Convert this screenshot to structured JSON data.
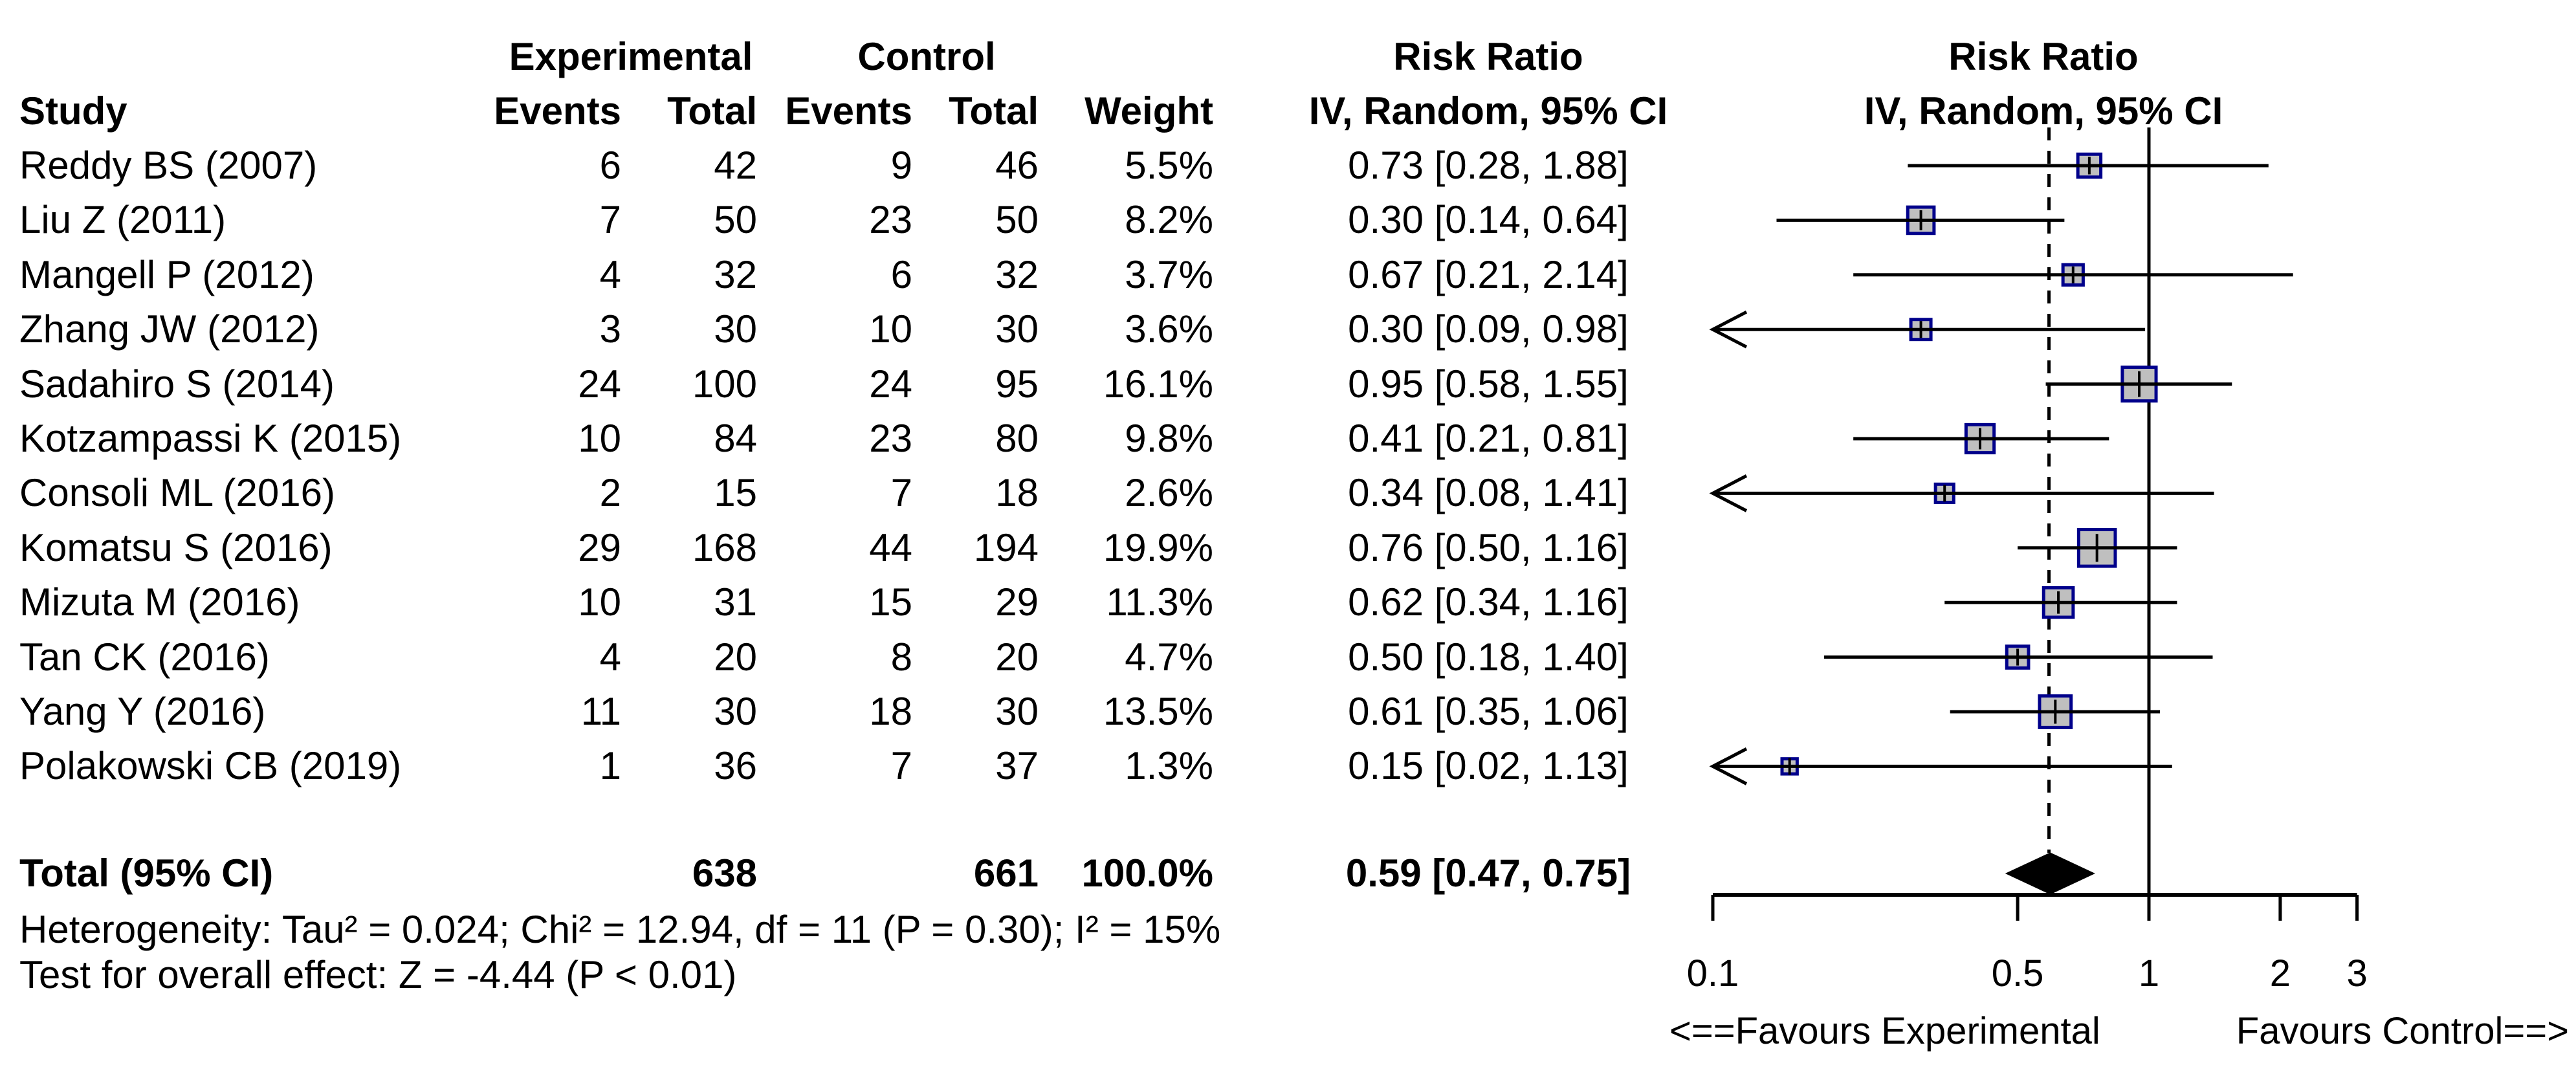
{
  "header": {
    "study": "Study",
    "experimental": "Experimental",
    "control": "Control",
    "events": "Events",
    "total": "Total",
    "weight": "Weight",
    "risk_ratio": "Risk Ratio",
    "method_ci": "IV, Random, 95% CI"
  },
  "chart_data": {
    "type": "scatter",
    "subtype": "forest-plot",
    "x_scale": "log",
    "xlim": [
      0.1,
      3
    ],
    "x_ticks": [
      "0.1",
      "0.5",
      "1",
      "2",
      "3"
    ],
    "null_line": 1,
    "pooled_line": 0.59,
    "studies": [
      {
        "name": "Reddy BS (2007)",
        "events_exp": "6",
        "total_exp": "42",
        "events_ctl": "9",
        "total_ctl": "46",
        "weight": "5.5%",
        "rr_text": "0.73 [0.28, 1.88]",
        "rr": 0.73,
        "ci_low": 0.28,
        "ci_high": 1.88,
        "weight_pct": 5.5
      },
      {
        "name": "Liu Z (2011)",
        "events_exp": "7",
        "total_exp": "50",
        "events_ctl": "23",
        "total_ctl": "50",
        "weight": "8.2%",
        "rr_text": "0.30 [0.14, 0.64]",
        "rr": 0.3,
        "ci_low": 0.14,
        "ci_high": 0.64,
        "weight_pct": 8.2
      },
      {
        "name": "Mangell P (2012)",
        "events_exp": "4",
        "total_exp": "32",
        "events_ctl": "6",
        "total_ctl": "32",
        "weight": "3.7%",
        "rr_text": "0.67 [0.21, 2.14]",
        "rr": 0.67,
        "ci_low": 0.21,
        "ci_high": 2.14,
        "weight_pct": 3.7
      },
      {
        "name": "Zhang JW (2012)",
        "events_exp": "3",
        "total_exp": "30",
        "events_ctl": "10",
        "total_ctl": "30",
        "weight": "3.6%",
        "rr_text": "0.30 [0.09, 0.98]",
        "rr": 0.3,
        "ci_low": 0.09,
        "ci_high": 0.98,
        "weight_pct": 3.6
      },
      {
        "name": "Sadahiro S (2014)",
        "events_exp": "24",
        "total_exp": "100",
        "events_ctl": "24",
        "total_ctl": "95",
        "weight": "16.1%",
        "rr_text": "0.95 [0.58, 1.55]",
        "rr": 0.95,
        "ci_low": 0.58,
        "ci_high": 1.55,
        "weight_pct": 16.1
      },
      {
        "name": "Kotzampassi K (2015)",
        "events_exp": "10",
        "total_exp": "84",
        "events_ctl": "23",
        "total_ctl": "80",
        "weight": "9.8%",
        "rr_text": "0.41 [0.21, 0.81]",
        "rr": 0.41,
        "ci_low": 0.21,
        "ci_high": 0.81,
        "weight_pct": 9.8
      },
      {
        "name": "Consoli ML (2016)",
        "events_exp": "2",
        "total_exp": "15",
        "events_ctl": "7",
        "total_ctl": "18",
        "weight": "2.6%",
        "rr_text": "0.34 [0.08, 1.41]",
        "rr": 0.34,
        "ci_low": 0.08,
        "ci_high": 1.41,
        "weight_pct": 2.6
      },
      {
        "name": "Komatsu S (2016)",
        "events_exp": "29",
        "total_exp": "168",
        "events_ctl": "44",
        "total_ctl": "194",
        "weight": "19.9%",
        "rr_text": "0.76 [0.50, 1.16]",
        "rr": 0.76,
        "ci_low": 0.5,
        "ci_high": 1.16,
        "weight_pct": 19.9
      },
      {
        "name": "Mizuta M (2016)",
        "events_exp": "10",
        "total_exp": "31",
        "events_ctl": "15",
        "total_ctl": "29",
        "weight": "11.3%",
        "rr_text": "0.62 [0.34, 1.16]",
        "rr": 0.62,
        "ci_low": 0.34,
        "ci_high": 1.16,
        "weight_pct": 11.3
      },
      {
        "name": "Tan CK (2016)",
        "events_exp": "4",
        "total_exp": "20",
        "events_ctl": "8",
        "total_ctl": "20",
        "weight": "4.7%",
        "rr_text": "0.50 [0.18, 1.40]",
        "rr": 0.5,
        "ci_low": 0.18,
        "ci_high": 1.4,
        "weight_pct": 4.7
      },
      {
        "name": "Yang Y (2016)",
        "events_exp": "11",
        "total_exp": "30",
        "events_ctl": "18",
        "total_ctl": "30",
        "weight": "13.5%",
        "rr_text": "0.61 [0.35, 1.06]",
        "rr": 0.61,
        "ci_low": 0.35,
        "ci_high": 1.06,
        "weight_pct": 13.5
      },
      {
        "name": "Polakowski CB (2019)",
        "events_exp": "1",
        "total_exp": "36",
        "events_ctl": "7",
        "total_ctl": "37",
        "weight": "1.3%",
        "rr_text": "0.15 [0.02, 1.13]",
        "rr": 0.15,
        "ci_low": 0.02,
        "ci_high": 1.13,
        "weight_pct": 1.3
      }
    ],
    "total": {
      "label": "Total (95% CI)",
      "total_exp": "638",
      "total_ctl": "661",
      "weight": "100.0%",
      "rr_text": "0.59 [0.47, 0.75]",
      "rr": 0.59,
      "ci_low": 0.47,
      "ci_high": 0.75
    }
  },
  "footer": {
    "heterogeneity": "Heterogeneity: Tau² = 0.024; Chi² = 12.94, df = 11 (P = 0.30); I² = 15%",
    "overall_effect": "Test for overall effect: Z = -4.44 (P < 0.01)"
  },
  "favours": {
    "left": "<==Favours Experimental",
    "right": "Favours Control==>"
  },
  "colors": {
    "square_fill": "#BFBFBF",
    "square_border": "#00008B",
    "diamond": "#000000",
    "line": "#000000"
  }
}
